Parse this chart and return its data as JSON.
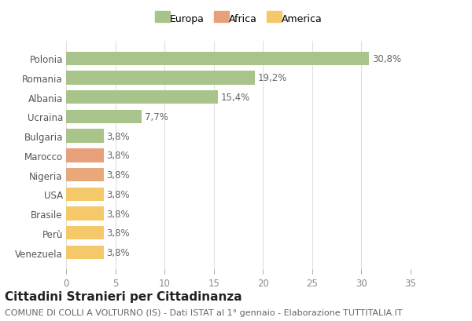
{
  "categories": [
    "Venezuela",
    "Perù",
    "Brasile",
    "USA",
    "Nigeria",
    "Marocco",
    "Bulgaria",
    "Ucraina",
    "Albania",
    "Romania",
    "Polonia"
  ],
  "values": [
    3.8,
    3.8,
    3.8,
    3.8,
    3.8,
    3.8,
    3.8,
    7.7,
    15.4,
    19.2,
    30.8
  ],
  "labels": [
    "3,8%",
    "3,8%",
    "3,8%",
    "3,8%",
    "3,8%",
    "3,8%",
    "3,8%",
    "7,7%",
    "15,4%",
    "19,2%",
    "30,8%"
  ],
  "colors": [
    "#f5c96a",
    "#f5c96a",
    "#f5c96a",
    "#f5c96a",
    "#e8a87a",
    "#e8a07a",
    "#a8c48a",
    "#a8c48a",
    "#a8c48a",
    "#a8c48a",
    "#a8c48a"
  ],
  "legend_items": [
    {
      "label": "Europa",
      "color": "#a8c48a"
    },
    {
      "label": "Africa",
      "color": "#e8a07a"
    },
    {
      "label": "America",
      "color": "#f5c96a"
    }
  ],
  "xlim": [
    0,
    35
  ],
  "xticks": [
    0,
    5,
    10,
    15,
    20,
    25,
    30,
    35
  ],
  "title": "Cittadini Stranieri per Cittadinanza",
  "subtitle": "COMUNE DI COLLI A VOLTURNO (IS) - Dati ISTAT al 1° gennaio - Elaborazione TUTTITALIA.IT",
  "bg_color": "#ffffff",
  "grid_color": "#e0e0e0",
  "bar_height": 0.7,
  "label_fontsize": 8.5,
  "tick_fontsize": 8.5,
  "title_fontsize": 11,
  "subtitle_fontsize": 8
}
